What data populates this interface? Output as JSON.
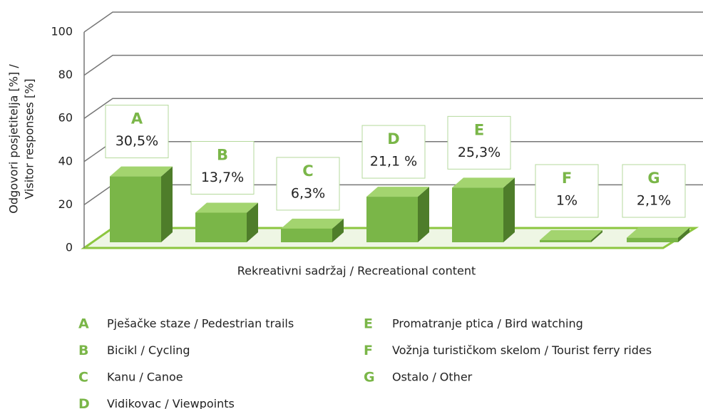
{
  "chart_data": {
    "type": "bar",
    "categories": [
      "A",
      "B",
      "C",
      "D",
      "E",
      "F",
      "G"
    ],
    "values": [
      30.5,
      13.7,
      6.3,
      21.1,
      25.3,
      1,
      2.1
    ],
    "value_labels": [
      "30,5%",
      "13,7%",
      "6,3%",
      "21,1 %",
      "25,3%",
      "1%",
      "2,1%"
    ],
    "legend": [
      "Pješačke staze / Pedestrian trails",
      "Bicikl / Cycling",
      "Kanu / Canoe",
      "Vidikovac / Viewpoints",
      "Promatranje ptica / Bird watching",
      "Vožnja turističkom skelom / Tourist ferry rides",
      "Ostalo / Other"
    ],
    "color": "#7ab648",
    "xlabel": "Rekreativni sadržaj / Recreational content",
    "ylabel": [
      "Odgovori posjetitelja [%] /",
      "Visitor responses [%]"
    ],
    "ylim": [
      0,
      100
    ],
    "yticks": [
      0,
      20,
      40,
      60,
      80,
      100
    ],
    "grid": true
  }
}
